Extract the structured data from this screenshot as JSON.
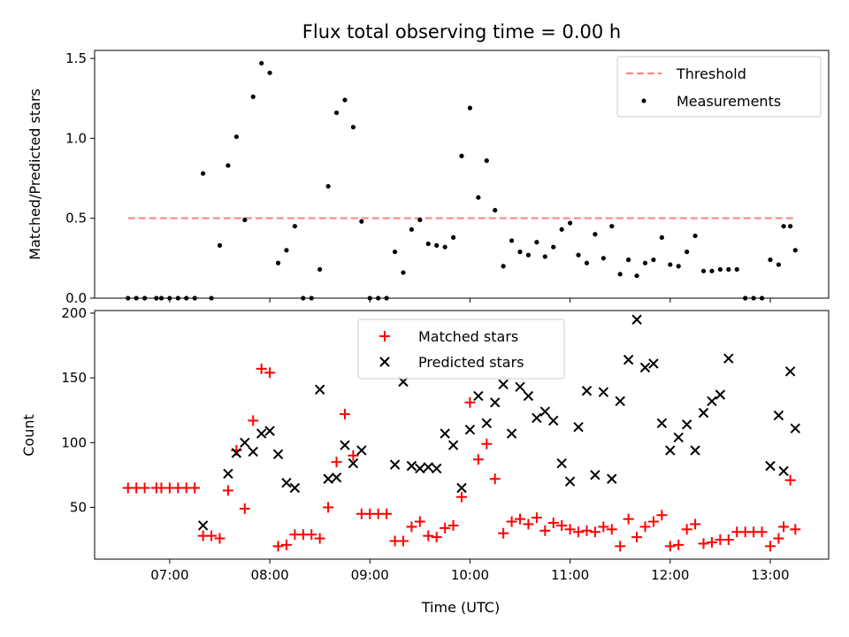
{
  "chart_data": [
    {
      "type": "scatter",
      "title": "Flux total observing time = 0.00 h",
      "xlabel": "",
      "ylabel": "Matched/Predicted stars",
      "xlim": [
        "06:15",
        "13:35"
      ],
      "ylim": [
        0,
        1.55
      ],
      "yticks": [
        0.0,
        0.5,
        1.0,
        1.5
      ],
      "ytick_labels": [
        "0.0",
        "0.5",
        "1.0",
        "1.5"
      ],
      "xticks": [
        "07:00",
        "08:00",
        "09:00",
        "10:00",
        "11:00",
        "12:00",
        "13:00"
      ],
      "xtick_labels": [],
      "grid": false,
      "legend": {
        "location": "upper right",
        "entries": [
          {
            "label": "Threshold",
            "marker": "dashed-line",
            "color": "#ff7f7f"
          },
          {
            "label": "Measurements",
            "marker": "dot",
            "color": "#000000"
          }
        ]
      },
      "threshold": {
        "name": "Threshold",
        "value": 0.5,
        "x_start": "06:35",
        "x_end": "13:15",
        "color": "#ff7f7f"
      },
      "series": [
        {
          "name": "Measurements",
          "color": "#000000",
          "points": [
            [
              "06:35",
              0.0
            ],
            [
              "06:40",
              0.0
            ],
            [
              "06:45",
              0.0
            ],
            [
              "06:52",
              0.0
            ],
            [
              "06:55",
              0.0
            ],
            [
              "07:00",
              0.0
            ],
            [
              "07:05",
              0.0
            ],
            [
              "07:10",
              0.0
            ],
            [
              "07:15",
              0.0
            ],
            [
              "07:20",
              0.78
            ],
            [
              "07:25",
              0.0
            ],
            [
              "07:30",
              0.33
            ],
            [
              "07:35",
              0.83
            ],
            [
              "07:40",
              1.01
            ],
            [
              "07:45",
              0.49
            ],
            [
              "07:50",
              1.26
            ],
            [
              "07:55",
              1.47
            ],
            [
              "08:00",
              1.41
            ],
            [
              "08:05",
              0.22
            ],
            [
              "08:10",
              0.3
            ],
            [
              "08:15",
              0.45
            ],
            [
              "08:20",
              0.0
            ],
            [
              "08:25",
              0.0
            ],
            [
              "08:30",
              0.18
            ],
            [
              "08:35",
              0.7
            ],
            [
              "08:40",
              1.16
            ],
            [
              "08:45",
              1.24
            ],
            [
              "08:50",
              1.07
            ],
            [
              "08:55",
              0.48
            ],
            [
              "09:00",
              0.0
            ],
            [
              "09:05",
              0.0
            ],
            [
              "09:10",
              0.0
            ],
            [
              "09:15",
              0.29
            ],
            [
              "09:20",
              0.16
            ],
            [
              "09:25",
              0.43
            ],
            [
              "09:30",
              0.49
            ],
            [
              "09:35",
              0.34
            ],
            [
              "09:40",
              0.33
            ],
            [
              "09:45",
              0.32
            ],
            [
              "09:50",
              0.38
            ],
            [
              "09:55",
              0.89
            ],
            [
              "10:00",
              1.19
            ],
            [
              "10:05",
              0.63
            ],
            [
              "10:10",
              0.86
            ],
            [
              "10:15",
              0.55
            ],
            [
              "10:20",
              0.2
            ],
            [
              "10:25",
              0.36
            ],
            [
              "10:30",
              0.29
            ],
            [
              "10:35",
              0.27
            ],
            [
              "10:40",
              0.35
            ],
            [
              "10:45",
              0.26
            ],
            [
              "10:50",
              0.32
            ],
            [
              "10:55",
              0.43
            ],
            [
              "11:00",
              0.47
            ],
            [
              "11:05",
              0.27
            ],
            [
              "11:10",
              0.22
            ],
            [
              "11:15",
              0.4
            ],
            [
              "11:20",
              0.25
            ],
            [
              "11:25",
              0.45
            ],
            [
              "11:30",
              0.15
            ],
            [
              "11:35",
              0.24
            ],
            [
              "11:40",
              0.14
            ],
            [
              "11:45",
              0.22
            ],
            [
              "11:50",
              0.24
            ],
            [
              "11:55",
              0.38
            ],
            [
              "12:00",
              0.21
            ],
            [
              "12:05",
              0.2
            ],
            [
              "12:10",
              0.29
            ],
            [
              "12:15",
              0.39
            ],
            [
              "12:20",
              0.17
            ],
            [
              "12:25",
              0.17
            ],
            [
              "12:30",
              0.18
            ],
            [
              "12:35",
              0.18
            ],
            [
              "12:40",
              0.18
            ],
            [
              "12:45",
              0.0
            ],
            [
              "12:50",
              0.0
            ],
            [
              "12:55",
              0.0
            ],
            [
              "13:00",
              0.24
            ],
            [
              "13:05",
              0.21
            ],
            [
              "13:08",
              0.45
            ],
            [
              "13:12",
              0.45
            ],
            [
              "13:15",
              0.3
            ]
          ]
        }
      ]
    },
    {
      "type": "scatter",
      "title": "",
      "xlabel": "Time (UTC)",
      "ylabel": "Count",
      "xlim": [
        "06:15",
        "13:35"
      ],
      "ylim": [
        10,
        202
      ],
      "yticks": [
        50,
        100,
        150,
        200
      ],
      "ytick_labels": [
        "50",
        "100",
        "150",
        "200"
      ],
      "xticks": [
        "07:00",
        "08:00",
        "09:00",
        "10:00",
        "11:00",
        "12:00",
        "13:00"
      ],
      "xtick_labels": [
        "07:00",
        "08:00",
        "09:00",
        "10:00",
        "11:00",
        "12:00",
        "13:00"
      ],
      "grid": false,
      "legend": {
        "location": "upper center",
        "entries": [
          {
            "label": "Matched stars",
            "marker": "plus",
            "color": "#ff0000"
          },
          {
            "label": "Predicted stars",
            "marker": "cross",
            "color": "#000000"
          }
        ]
      },
      "series": [
        {
          "name": "Matched stars",
          "color": "#ff0000",
          "marker": "plus",
          "points": [
            [
              "06:35",
              65
            ],
            [
              "06:40",
              65
            ],
            [
              "06:45",
              65
            ],
            [
              "06:52",
              65
            ],
            [
              "06:55",
              65
            ],
            [
              "07:00",
              65
            ],
            [
              "07:05",
              65
            ],
            [
              "07:10",
              65
            ],
            [
              "07:15",
              65
            ],
            [
              "07:20",
              28
            ],
            [
              "07:25",
              28
            ],
            [
              "07:30",
              26
            ],
            [
              "07:35",
              63
            ],
            [
              "07:40",
              94
            ],
            [
              "07:45",
              49
            ],
            [
              "07:50",
              117
            ],
            [
              "07:55",
              157
            ],
            [
              "08:00",
              154
            ],
            [
              "08:05",
              20
            ],
            [
              "08:10",
              21
            ],
            [
              "08:15",
              29
            ],
            [
              "08:20",
              29
            ],
            [
              "08:25",
              29
            ],
            [
              "08:30",
              26
            ],
            [
              "08:35",
              50
            ],
            [
              "08:40",
              85
            ],
            [
              "08:45",
              122
            ],
            [
              "08:50",
              90
            ],
            [
              "08:55",
              45
            ],
            [
              "09:00",
              45
            ],
            [
              "09:05",
              45
            ],
            [
              "09:10",
              45
            ],
            [
              "09:15",
              24
            ],
            [
              "09:20",
              24
            ],
            [
              "09:25",
              35
            ],
            [
              "09:30",
              39
            ],
            [
              "09:35",
              28
            ],
            [
              "09:40",
              27
            ],
            [
              "09:45",
              34
            ],
            [
              "09:50",
              36
            ],
            [
              "09:55",
              58
            ],
            [
              "10:00",
              131
            ],
            [
              "10:05",
              87
            ],
            [
              "10:10",
              99
            ],
            [
              "10:15",
              72
            ],
            [
              "10:20",
              30
            ],
            [
              "10:25",
              39
            ],
            [
              "10:30",
              41
            ],
            [
              "10:35",
              37
            ],
            [
              "10:40",
              42
            ],
            [
              "10:45",
              32
            ],
            [
              "10:50",
              38
            ],
            [
              "10:55",
              36
            ],
            [
              "11:00",
              33
            ],
            [
              "11:05",
              31
            ],
            [
              "11:10",
              32
            ],
            [
              "11:15",
              31
            ],
            [
              "11:20",
              35
            ],
            [
              "11:25",
              33
            ],
            [
              "11:30",
              20
            ],
            [
              "11:35",
              41
            ],
            [
              "11:40",
              27
            ],
            [
              "11:45",
              35
            ],
            [
              "11:50",
              39
            ],
            [
              "11:55",
              44
            ],
            [
              "12:00",
              20
            ],
            [
              "12:05",
              21
            ],
            [
              "12:10",
              33
            ],
            [
              "12:15",
              37
            ],
            [
              "12:20",
              22
            ],
            [
              "12:25",
              23
            ],
            [
              "12:30",
              25
            ],
            [
              "12:35",
              25
            ],
            [
              "12:40",
              31
            ],
            [
              "12:45",
              31
            ],
            [
              "12:50",
              31
            ],
            [
              "12:55",
              31
            ],
            [
              "13:00",
              20
            ],
            [
              "13:05",
              26
            ],
            [
              "13:08",
              35
            ],
            [
              "13:12",
              71
            ],
            [
              "13:15",
              33
            ]
          ]
        },
        {
          "name": "Predicted stars",
          "color": "#000000",
          "marker": "cross",
          "points": [
            [
              "07:20",
              36
            ],
            [
              "07:35",
              76
            ],
            [
              "07:40",
              92
            ],
            [
              "07:45",
              100
            ],
            [
              "07:50",
              93
            ],
            [
              "07:55",
              107
            ],
            [
              "08:00",
              109
            ],
            [
              "08:05",
              91
            ],
            [
              "08:10",
              69
            ],
            [
              "08:15",
              65
            ],
            [
              "08:30",
              141
            ],
            [
              "08:35",
              72
            ],
            [
              "08:40",
              73
            ],
            [
              "08:45",
              98
            ],
            [
              "08:50",
              84
            ],
            [
              "08:55",
              94
            ],
            [
              "09:15",
              83
            ],
            [
              "09:20",
              147
            ],
            [
              "09:25",
              82
            ],
            [
              "09:30",
              80
            ],
            [
              "09:35",
              81
            ],
            [
              "09:40",
              80
            ],
            [
              "09:45",
              107
            ],
            [
              "09:50",
              98
            ],
            [
              "09:55",
              65
            ],
            [
              "10:00",
              110
            ],
            [
              "10:05",
              136
            ],
            [
              "10:10",
              115
            ],
            [
              "10:15",
              131
            ],
            [
              "10:20",
              145
            ],
            [
              "10:25",
              107
            ],
            [
              "10:30",
              143
            ],
            [
              "10:35",
              136
            ],
            [
              "10:40",
              119
            ],
            [
              "10:45",
              124
            ],
            [
              "10:50",
              117
            ],
            [
              "10:55",
              84
            ],
            [
              "11:00",
              70
            ],
            [
              "11:05",
              112
            ],
            [
              "11:10",
              140
            ],
            [
              "11:15",
              75
            ],
            [
              "11:20",
              139
            ],
            [
              "11:25",
              72
            ],
            [
              "11:30",
              132
            ],
            [
              "11:35",
              164
            ],
            [
              "11:40",
              195
            ],
            [
              "11:45",
              158
            ],
            [
              "11:50",
              161
            ],
            [
              "11:55",
              115
            ],
            [
              "12:00",
              94
            ],
            [
              "12:05",
              104
            ],
            [
              "12:10",
              114
            ],
            [
              "12:15",
              94
            ],
            [
              "12:20",
              123
            ],
            [
              "12:25",
              132
            ],
            [
              "12:30",
              137
            ],
            [
              "12:35",
              165
            ],
            [
              "13:00",
              82
            ],
            [
              "13:05",
              121
            ],
            [
              "13:08",
              78
            ],
            [
              "13:12",
              155
            ],
            [
              "13:15",
              111
            ]
          ]
        }
      ]
    }
  ]
}
